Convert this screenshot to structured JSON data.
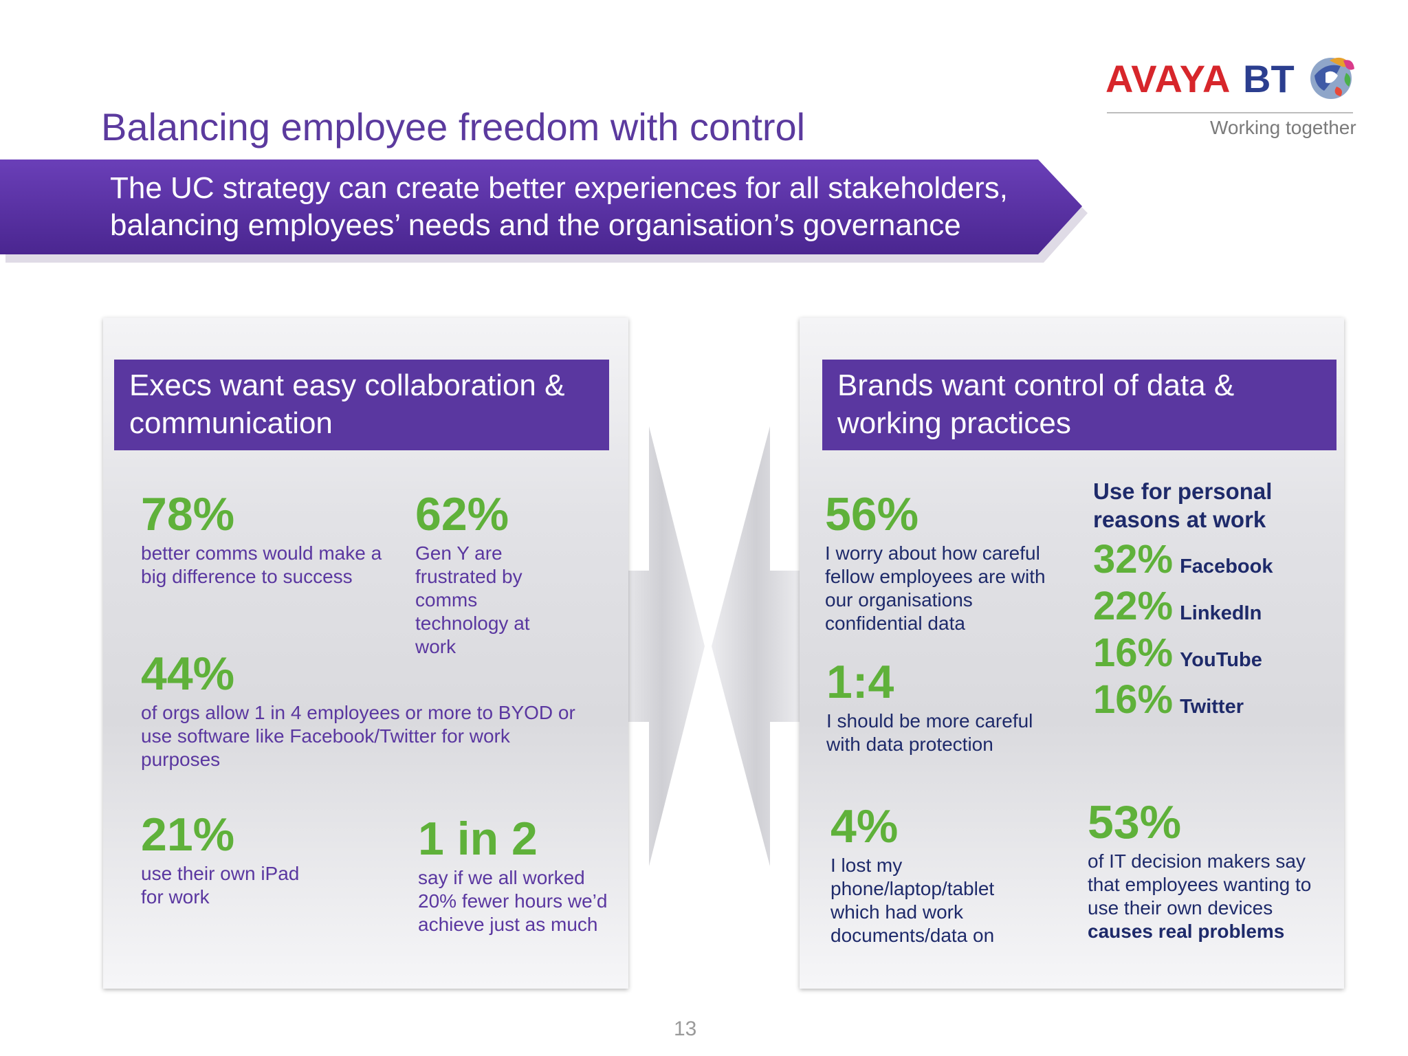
{
  "slide": {
    "title": "Balancing employee freedom with control",
    "page_number": "13"
  },
  "logo": {
    "avaya": "AVAYA",
    "bt": "BT",
    "tagline": "Working together"
  },
  "banner": {
    "line1": "The UC strategy can create better experiences for all stakeholders,",
    "line2": "balancing employees’ needs and the organisation’s governance"
  },
  "left_panel": {
    "heading": "Execs want easy collaboration & communication",
    "stats": [
      {
        "value": "78%",
        "text": "better comms would make a big difference to success"
      },
      {
        "value": "62%",
        "text": "Gen Y are frustrated by comms technology at work"
      },
      {
        "value": "44%",
        "text": "of orgs allow 1 in 4 employees or more to BYOD or use software like Facebook/Twitter for work purposes"
      },
      {
        "value": "21%",
        "text": "use their own iPad for work"
      },
      {
        "value": "1 in 2",
        "text": "say if we all worked 20% fewer hours we’d achieve just as much"
      }
    ]
  },
  "right_panel": {
    "heading": "Brands want control of data & working practices",
    "stats": [
      {
        "value": "56%",
        "text": "I worry about how careful fellow employees are with our organisations confidential data"
      },
      {
        "value": "1:4",
        "text": "I should be more careful with data protection"
      },
      {
        "value": "4%",
        "text": "I lost my phone/laptop/tablet which had work documents/data on"
      },
      {
        "value": "53%",
        "text": "of IT decision makers say that employees wanting to use their own devices",
        "text_bold": "causes real problems"
      }
    ],
    "personal_use": {
      "heading": "Use for personal reasons at work",
      "items": [
        {
          "pct": "32%",
          "name": "Facebook"
        },
        {
          "pct": "22%",
          "name": "LinkedIn"
        },
        {
          "pct": "16%",
          "name": "YouTube"
        },
        {
          "pct": "16%",
          "name": "Twitter"
        }
      ]
    }
  },
  "colors": {
    "purple": "#5a37a0",
    "green": "#5fb13a",
    "navy": "#1e2a6a",
    "avaya_red": "#d7262b"
  }
}
